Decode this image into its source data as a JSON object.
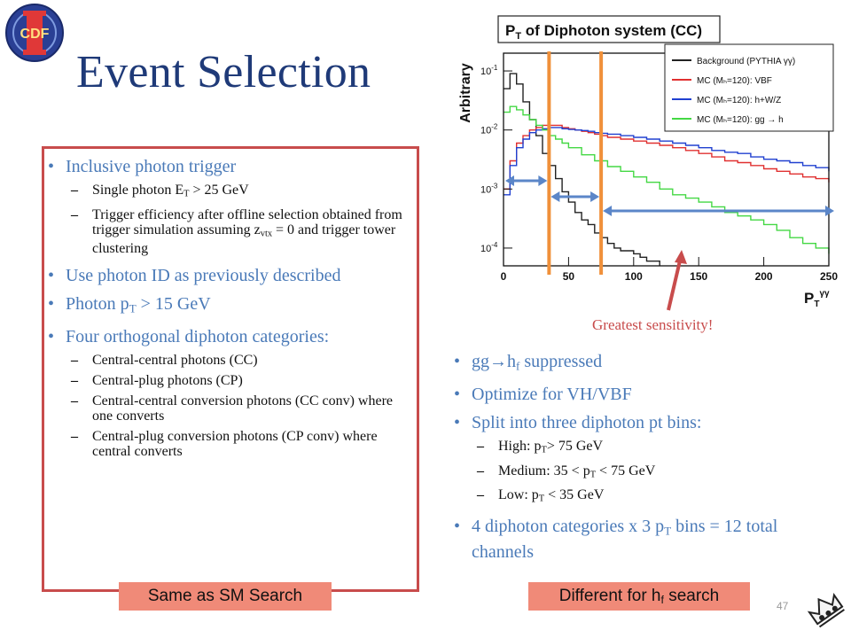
{
  "header": {
    "logo_text": "CDF",
    "title": "Event Selection"
  },
  "left_panel": {
    "items": [
      {
        "text": "Inclusive photon trigger"
      },
      {
        "text": "Use photon ID as previously described"
      },
      {
        "text": "Photon p",
        "sub": "T",
        "tail": " > 15 GeV"
      },
      {
        "text": "Four orthogonal diphoton categories:"
      }
    ],
    "trigger_sub": [
      {
        "pre": "Single photon E",
        "sub": "T",
        "post": " > 25 GeV"
      },
      {
        "pre": "Trigger efficiency after offline selection obtained from trigger simulation assuming z",
        "sub": "vtx",
        "post": " = 0 and trigger tower clustering"
      }
    ],
    "category_sub": [
      "Central-central photons (CC)",
      "Central-plug photons (CP)",
      "Central-central conversion photons (CC conv) where one converts",
      "Central-plug conversion photons (CP conv) where central converts"
    ],
    "footer_label": "Same as SM Search"
  },
  "right_panel": {
    "items": [
      {
        "pre": "gg",
        "arrow": "→",
        "mid": "h",
        "sub": "f",
        "post": " suppressed"
      },
      {
        "text": "Optimize for VH/VBF"
      },
      {
        "text": "Split into three diphoton pt bins:"
      },
      {
        "pre": "4 diphoton categories x 3 p",
        "sub": "T",
        "post": " bins = 12 total channels"
      }
    ],
    "bins": [
      {
        "pre": "High: p",
        "sub": "T",
        "post": "> 75 GeV"
      },
      {
        "pre": "Medium: 35 < p",
        "sub": "T",
        "post": " < 75  GeV"
      },
      {
        "pre": "Low: p",
        "sub": "T",
        "post": " < 35 GeV"
      }
    ],
    "footer_label_pre": "Different for h",
    "footer_label_sub": "f",
    "footer_label_post": " search"
  },
  "annotation": {
    "sensitivity": "Greatest sensitivity!"
  },
  "page_number": "47",
  "chart_data": {
    "type": "line",
    "title": "P",
    "title_sub": "T",
    "title_tail": " of Diphoton system (CC)",
    "ylabel": "Arbitrary",
    "xlabel": "P",
    "xlabel_sub": "T",
    "xlabel_sup": "γγ",
    "xlim": [
      0,
      250
    ],
    "ylim": [
      5e-05,
      0.2
    ],
    "yscale": "log",
    "xticks": [
      "0",
      "50",
      "100",
      "150",
      "200",
      "250"
    ],
    "yticks": [
      {
        "base": "10",
        "exp": "-1",
        "v": 0.1
      },
      {
        "base": "10",
        "exp": "-2",
        "v": 0.01
      },
      {
        "base": "10",
        "exp": "-3",
        "v": 0.001
      },
      {
        "base": "10",
        "exp": "-4",
        "v": 0.0001
      }
    ],
    "legend_position": "top-right",
    "series": [
      {
        "name": "Background (PYTHIA γγ)",
        "color": "#222222",
        "x": [
          0,
          5,
          10,
          15,
          20,
          25,
          30,
          35,
          40,
          45,
          50,
          55,
          60,
          65,
          70,
          75,
          80,
          85,
          90,
          95,
          100,
          105,
          110,
          115,
          120
        ],
        "y": [
          0.05,
          0.09,
          0.06,
          0.03,
          0.015,
          0.008,
          0.004,
          0.0025,
          0.0015,
          0.0009,
          0.0006,
          0.0004,
          0.0003,
          0.00025,
          0.00018,
          0.00015,
          0.00012,
          0.0001,
          9e-05,
          9e-05,
          8e-05,
          7e-05,
          6e-05,
          6e-05,
          5e-05
        ]
      },
      {
        "name": "MC (Mₕ=120): VBF",
        "color": "#e03030",
        "x": [
          0,
          5,
          10,
          15,
          20,
          25,
          30,
          35,
          40,
          45,
          50,
          55,
          60,
          65,
          70,
          75,
          80,
          90,
          100,
          110,
          120,
          130,
          140,
          150,
          160,
          170,
          180,
          190,
          200,
          210,
          220,
          230,
          240,
          250
        ],
        "y": [
          0.001,
          0.003,
          0.006,
          0.008,
          0.01,
          0.011,
          0.012,
          0.012,
          0.012,
          0.011,
          0.0105,
          0.01,
          0.0095,
          0.009,
          0.0085,
          0.008,
          0.0075,
          0.007,
          0.0065,
          0.006,
          0.0055,
          0.005,
          0.0045,
          0.004,
          0.0035,
          0.003,
          0.0028,
          0.0025,
          0.0022,
          0.002,
          0.0018,
          0.0016,
          0.0015,
          0.0013
        ]
      },
      {
        "name": "MC (Mₕ=120): h+W/Z",
        "color": "#2040d0",
        "x": [
          0,
          5,
          10,
          15,
          20,
          25,
          30,
          35,
          40,
          45,
          50,
          55,
          60,
          65,
          70,
          75,
          80,
          90,
          100,
          110,
          120,
          130,
          140,
          150,
          160,
          170,
          180,
          190,
          200,
          210,
          220,
          230,
          240,
          250
        ],
        "y": [
          0.0008,
          0.0025,
          0.005,
          0.007,
          0.009,
          0.01,
          0.0105,
          0.011,
          0.011,
          0.0105,
          0.0102,
          0.01,
          0.0098,
          0.0095,
          0.009,
          0.0088,
          0.0085,
          0.008,
          0.0075,
          0.007,
          0.0065,
          0.006,
          0.0055,
          0.005,
          0.0045,
          0.0042,
          0.004,
          0.0035,
          0.0032,
          0.003,
          0.0028,
          0.0025,
          0.0023,
          0.002
        ]
      },
      {
        "name": "MC (Mₕ=120): gg → h",
        "color": "#44d844",
        "x": [
          0,
          5,
          10,
          15,
          20,
          25,
          30,
          35,
          40,
          45,
          50,
          60,
          70,
          80,
          90,
          100,
          110,
          120,
          130,
          140,
          150,
          160,
          170,
          180,
          190,
          200,
          210,
          220,
          230,
          240,
          250
        ],
        "y": [
          0.02,
          0.025,
          0.022,
          0.018,
          0.015,
          0.012,
          0.01,
          0.008,
          0.007,
          0.006,
          0.005,
          0.0038,
          0.003,
          0.0024,
          0.002,
          0.0016,
          0.0013,
          0.001,
          0.0008,
          0.0007,
          0.0006,
          0.0005,
          0.0004,
          0.00035,
          0.0003,
          0.00025,
          0.0002,
          0.00015,
          0.00012,
          0.0001,
          8e-05
        ]
      }
    ],
    "bin_cuts": [
      35,
      75
    ]
  }
}
